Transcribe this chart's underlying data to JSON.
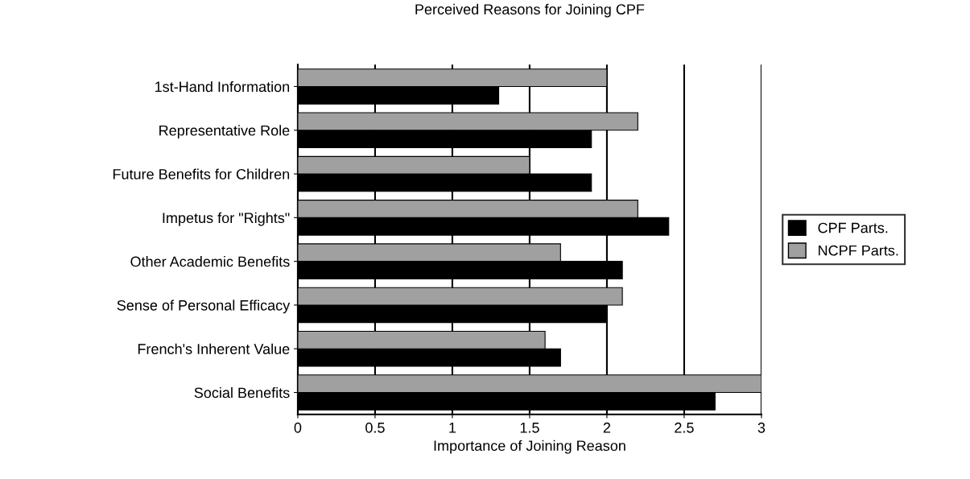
{
  "chart_data": {
    "type": "bar",
    "orientation": "horizontal",
    "title": "Perceived Reasons for Joining CPF",
    "xlabel": "Importance of Joining Reason",
    "categories": [
      "1st-Hand Information",
      "Representative Role",
      "Future Benefits for Children",
      "Impetus for \"Rights\"",
      "Other Academic Benefits",
      "Sense of Personal Efficacy",
      "French's Inherent Value",
      "Social Benefits"
    ],
    "series": [
      {
        "name": "CPF Parts.",
        "color": "#000000",
        "values": [
          1.3,
          1.9,
          1.9,
          2.4,
          2.1,
          2.0,
          1.7,
          2.7
        ]
      },
      {
        "name": "NCPF Parts.",
        "color": "#a0a0a0",
        "values": [
          2.0,
          2.2,
          1.5,
          2.2,
          1.7,
          2.1,
          1.6,
          3.0
        ]
      }
    ],
    "xlim": [
      0,
      3
    ],
    "xticks": [
      0,
      0.5,
      1,
      1.5,
      2,
      2.5,
      3
    ],
    "grid": "x",
    "legend": "right"
  }
}
